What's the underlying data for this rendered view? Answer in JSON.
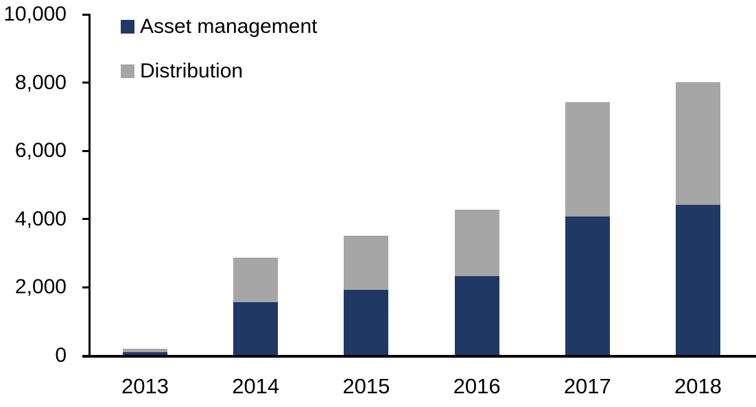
{
  "chart_data": {
    "type": "bar",
    "stacked": true,
    "title": "",
    "xlabel": "",
    "ylabel": "",
    "categories": [
      "2013",
      "2014",
      "2015",
      "2016",
      "2017",
      "2018"
    ],
    "series": [
      {
        "name": "Asset management",
        "color": "#203864",
        "values": [
          75,
          1550,
          1900,
          2300,
          4050,
          4400
        ]
      },
      {
        "name": "Distribution",
        "color": "#A6A6A6",
        "values": [
          100,
          1300,
          1600,
          1950,
          3350,
          3600
        ]
      }
    ],
    "totals": [
      175,
      2850,
      3500,
      4250,
      7400,
      8000
    ],
    "ylim": [
      0,
      10000
    ],
    "ytick_interval": 2000,
    "ytick_labels": [
      "0",
      "2,000",
      "4,000",
      "6,000",
      "8,000",
      "10,000"
    ],
    "grid": false,
    "legend_position": "top-left"
  },
  "colors": {
    "background": "#FFFFFF",
    "axis": "#000000",
    "text": "#000000"
  }
}
